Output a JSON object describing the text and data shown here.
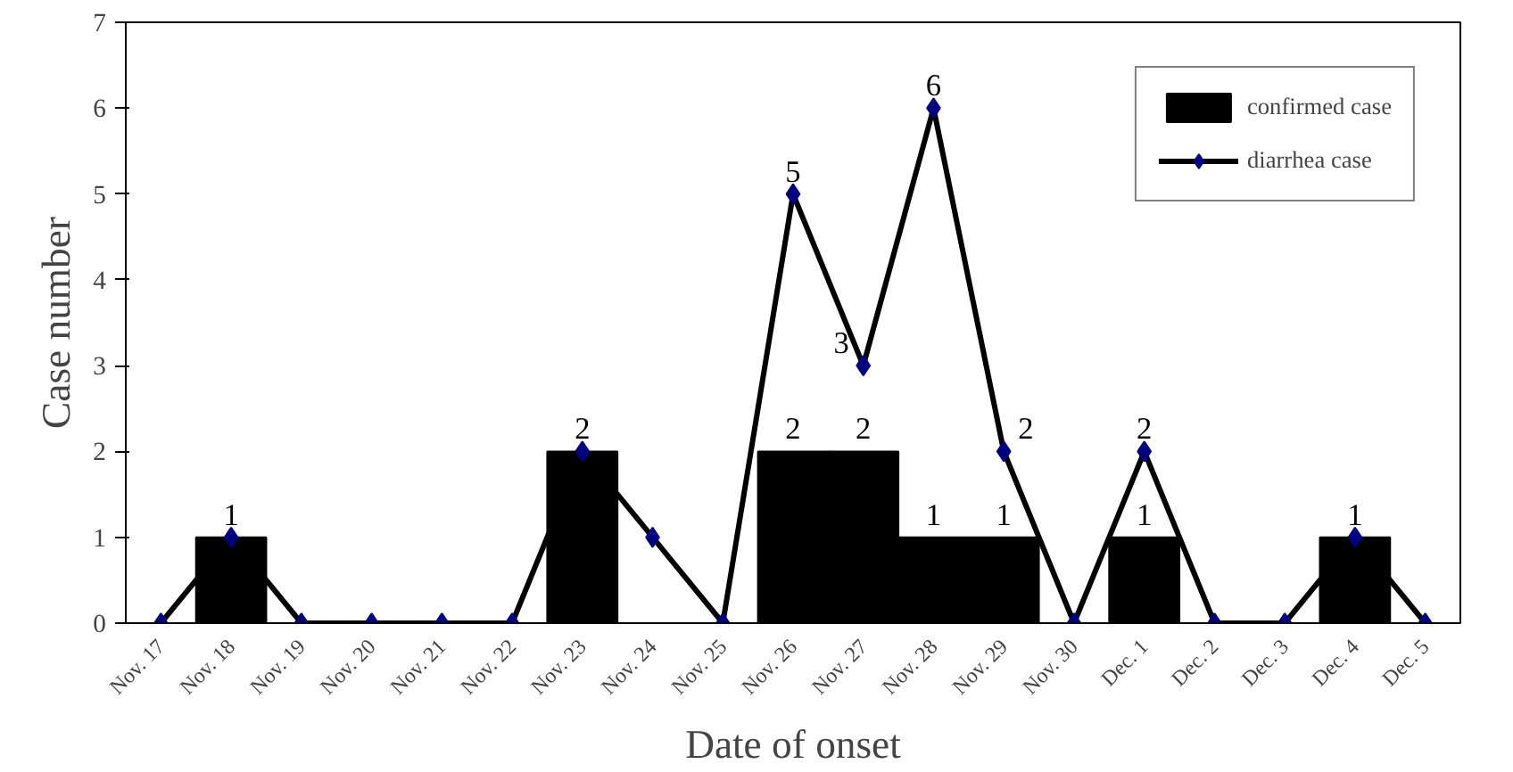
{
  "chart_data": {
    "type": "bar",
    "xlabel": "Date of onset",
    "ylabel": "Case number",
    "categories": [
      "Nov. 17",
      "Nov. 18",
      "Nov. 19",
      "Nov. 20",
      "Nov. 21",
      "Nov. 22",
      "Nov. 23",
      "Nov. 24",
      "Nov. 25",
      "Nov. 26",
      "Nov. 27",
      "Nov. 28",
      "Nov. 29",
      "Nov. 30",
      "Dec. 1",
      "Dec. 2",
      "Dec. 3",
      "Dec. 4",
      "Dec. 5"
    ],
    "series": [
      {
        "name": "confirmed case",
        "color": "#000000",
        "values": [
          0,
          1,
          0,
          0,
          0,
          0,
          2,
          0,
          0,
          2,
          2,
          1,
          1,
          0,
          1,
          0,
          0,
          1,
          0
        ],
        "value_labels": [
          null,
          "1",
          null,
          null,
          null,
          null,
          "2",
          null,
          null,
          "2",
          "2",
          "1",
          "1",
          null,
          "1",
          null,
          null,
          "1",
          null
        ]
      },
      {
        "name": "diarrhea case",
        "type": "line",
        "color": "#000080",
        "marker": "diamond",
        "values": [
          0,
          1,
          0,
          0,
          0,
          0,
          2,
          1,
          0,
          5,
          3,
          6,
          2,
          0,
          2,
          0,
          0,
          1,
          0
        ],
        "value_labels": [
          null,
          null,
          null,
          null,
          null,
          null,
          null,
          null,
          null,
          "5",
          "3",
          "6",
          "2",
          null,
          "2",
          null,
          null,
          null,
          null
        ]
      }
    ],
    "ylim": [
      0,
      7
    ],
    "yticks": [
      0,
      1,
      2,
      3,
      4,
      5,
      6,
      7
    ],
    "grid": false,
    "legend": "top right"
  }
}
